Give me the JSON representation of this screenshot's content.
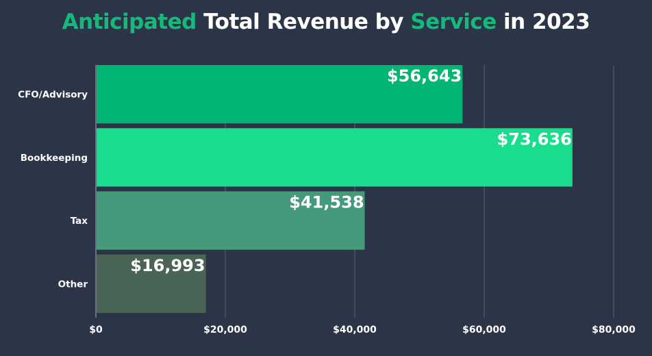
{
  "chart_data": {
    "type": "bar",
    "orientation": "horizontal",
    "title": "Anticipated Total Revenue by Service in 2023",
    "title_parts": [
      {
        "text": "Anticipated",
        "highlight": true
      },
      {
        "text": " Total Revenue by ",
        "highlight": false
      },
      {
        "text": "Service",
        "highlight": true
      },
      {
        "text": " in 2023",
        "highlight": false
      }
    ],
    "categories": [
      "CFO/Advisory",
      "Bookkeeping",
      "Tax",
      "Other"
    ],
    "values": [
      56643,
      73636,
      41538,
      16993
    ],
    "data_labels": [
      "$56,643",
      "$73,636",
      "$41,538",
      "$16,993"
    ],
    "bar_colors": [
      "#02b574",
      "#17dd8d",
      "#459a7c",
      "#4a6456"
    ],
    "xlabel": "",
    "ylabel": "",
    "xlim": [
      0,
      80000
    ],
    "x_ticks": [
      0,
      20000,
      40000,
      60000,
      80000
    ],
    "x_tick_labels": [
      "$0",
      "$20,000",
      "$40,000",
      "$60,000",
      "$80,000"
    ],
    "grid": true,
    "legend": "none"
  },
  "colors": {
    "background": "#2c3448",
    "title_highlight": "#15b97a",
    "text": "#ffffff",
    "gridline": "#5b6273"
  }
}
